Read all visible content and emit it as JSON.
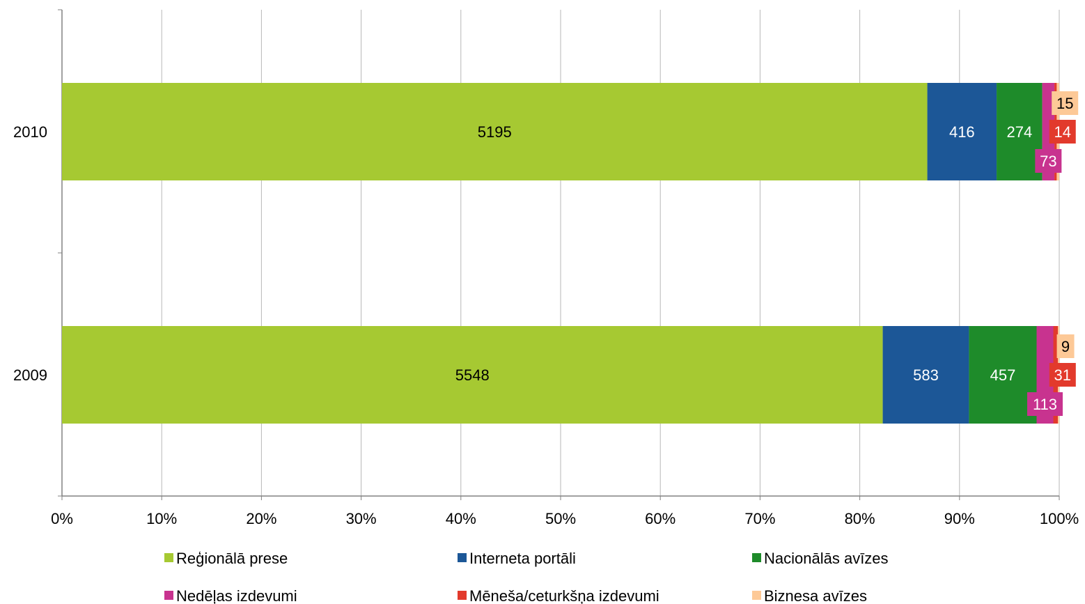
{
  "chart_data": {
    "type": "bar",
    "orientation": "horizontal",
    "stacking": "percent",
    "categories": [
      "2010",
      "2009"
    ],
    "series": [
      {
        "name": "Reģionālā prese",
        "color": "#a6c932",
        "values": [
          5195,
          5548
        ]
      },
      {
        "name": "Interneta portāli",
        "color": "#1c5797",
        "values": [
          416,
          583
        ]
      },
      {
        "name": "Nacionālās avīzes",
        "color": "#1e8b2a",
        "values": [
          274,
          457
        ]
      },
      {
        "name": "Nedēļas izdevumi",
        "color": "#c8338f",
        "values": [
          73,
          113
        ]
      },
      {
        "name": "Mēneša/ceturkšņa izdevumi",
        "color": "#e23a2c",
        "values": [
          14,
          31
        ]
      },
      {
        "name": "Biznesa avīzes",
        "color": "#fdc997",
        "values": [
          15,
          9
        ]
      }
    ],
    "x_ticks": [
      "0%",
      "10%",
      "20%",
      "30%",
      "40%",
      "50%",
      "60%",
      "70%",
      "80%",
      "90%",
      "100%"
    ],
    "xlim": [
      0,
      100
    ],
    "grid": "vertical",
    "legend": "bottom"
  }
}
